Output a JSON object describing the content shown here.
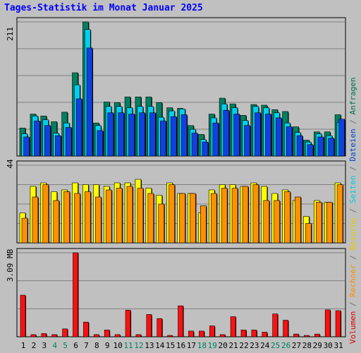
{
  "title": "Tages-Statistik im Monat Januar 2025",
  "panels": {
    "top_max_label": "211",
    "mid_max_label": "44",
    "bottom_max_label": "3.09 MB"
  },
  "side_legend": [
    {
      "text": "Volumen",
      "color": "#e00000"
    },
    {
      "text": " / ",
      "color": "#707070"
    },
    {
      "text": "Rechner",
      "color": "#ff8c00"
    },
    {
      "text": " / ",
      "color": "#707070"
    },
    {
      "text": "Besuche",
      "color": "#e8c800"
    },
    {
      "text": " / ",
      "color": "#707070"
    },
    {
      "text": "Seiten",
      "color": "#00c8e8"
    },
    {
      "text": " / ",
      "color": "#707070"
    },
    {
      "text": "Dateien",
      "color": "#0044cc"
    },
    {
      "text": " / ",
      "color": "#707070"
    },
    {
      "text": "Anfragen",
      "color": "#006e50"
    }
  ],
  "chart_data": [
    {
      "type": "bar",
      "categories": [
        "1",
        "2",
        "3",
        "4",
        "5",
        "6",
        "7",
        "8",
        "9",
        "10",
        "11",
        "12",
        "13",
        "14",
        "15",
        "16",
        "17",
        "18",
        "19",
        "20",
        "21",
        "22",
        "23",
        "24",
        "25",
        "26",
        "27",
        "28",
        "29",
        "30",
        "31"
      ],
      "weekend_days": [
        "4",
        "5",
        "11",
        "12",
        "18",
        "19",
        "25",
        "26"
      ],
      "ylim": [
        0,
        211
      ],
      "series": [
        {
          "name": "Anfragen",
          "color": "#008060",
          "values": [
            44,
            66,
            63,
            54,
            69,
            131,
            211,
            52,
            85,
            84,
            93,
            93,
            93,
            84,
            76,
            75,
            48,
            34,
            66,
            91,
            82,
            64,
            81,
            80,
            73,
            70,
            46,
            25,
            38,
            38,
            65
          ]
        },
        {
          "name": "Seiten",
          "color": "#00d0f0",
          "values": [
            35,
            63,
            57,
            36,
            52,
            112,
            199,
            48,
            78,
            78,
            76,
            78,
            78,
            61,
            71,
            74,
            42,
            26,
            60,
            82,
            76,
            56,
            78,
            76,
            68,
            52,
            37,
            22,
            35,
            32,
            53
          ]
        },
        {
          "name": "Dateien",
          "color": "#1040e0",
          "values": [
            30,
            55,
            48,
            32,
            45,
            90,
            170,
            40,
            68,
            68,
            66,
            68,
            68,
            55,
            62,
            65,
            36,
            22,
            52,
            72,
            66,
            48,
            68,
            66,
            60,
            46,
            32,
            18,
            30,
            28,
            58
          ]
        }
      ]
    },
    {
      "type": "bar",
      "ylim": [
        0,
        44
      ],
      "series": [
        {
          "name": "Besuche",
          "color": "#ffff00",
          "values": [
            17,
            32,
            34,
            29,
            30,
            34,
            33,
            33,
            32,
            34,
            34,
            36,
            31,
            27,
            34,
            28,
            28,
            17,
            30,
            33,
            33,
            32,
            34,
            32,
            28,
            30,
            24,
            15,
            24,
            23,
            34
          ]
        },
        {
          "name": "Rechner",
          "color": "#ff9000",
          "values": [
            14,
            26,
            33,
            24,
            29,
            28,
            29,
            26,
            30,
            31,
            32,
            31,
            28,
            22,
            33,
            28,
            28,
            21,
            28,
            31,
            31,
            32,
            33,
            24,
            24,
            29,
            26,
            11,
            23,
            23,
            33
          ]
        }
      ]
    },
    {
      "type": "bar",
      "ylim": [
        0,
        3.09
      ],
      "ylabel": "MB",
      "series": [
        {
          "name": "Volumen",
          "color": "#ff1010",
          "values": [
            1.53,
            0.08,
            0.12,
            0.08,
            0.29,
            3.09,
            0.54,
            0.08,
            0.25,
            0.08,
            0.98,
            0.08,
            0.82,
            0.67,
            0.05,
            1.14,
            0.21,
            0.21,
            0.4,
            0.08,
            0.74,
            0.25,
            0.25,
            0.17,
            0.84,
            0.61,
            0.1,
            0.05,
            0.1,
            0.99,
            0.96
          ]
        }
      ]
    }
  ]
}
